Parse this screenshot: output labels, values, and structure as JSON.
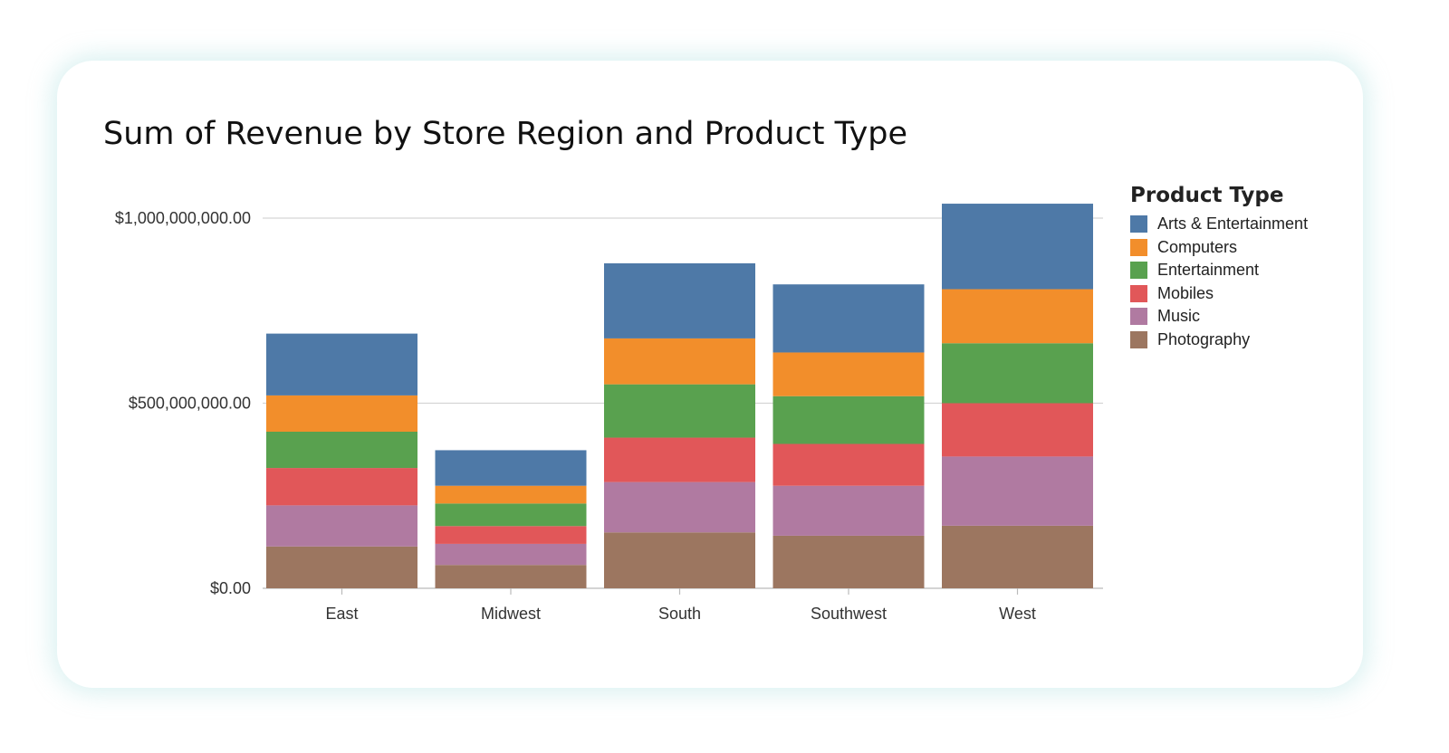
{
  "chart_data": {
    "type": "bar",
    "stacked": true,
    "title": "Sum of Revenue by Store Region and Product Type",
    "xlabel": "",
    "ylabel": "",
    "categories": [
      "East",
      "Midwest",
      "South",
      "Southwest",
      "West"
    ],
    "ylim": [
      0,
      1000000000
    ],
    "yticks": [
      {
        "value": 0,
        "label": "$0.00"
      },
      {
        "value": 500000000,
        "label": "$500,000,000.00"
      },
      {
        "value": 1000000000,
        "label": "$1,000,000,000.00"
      }
    ],
    "grid": true,
    "legend": {
      "title": "Product Type",
      "position": "right"
    },
    "series": [
      {
        "name": "Photography",
        "color": "#9c7660",
        "values": [
          113000000,
          63000000,
          151000000,
          142000000,
          169000000
        ]
      },
      {
        "name": "Music",
        "color": "#b07aa1",
        "values": [
          111000000,
          57000000,
          136000000,
          135000000,
          187000000
        ]
      },
      {
        "name": "Mobiles",
        "color": "#e15759",
        "values": [
          101000000,
          48000000,
          120000000,
          113000000,
          144000000
        ]
      },
      {
        "name": "Entertainment",
        "color": "#59a14f",
        "values": [
          98000000,
          61000000,
          144000000,
          129000000,
          162000000
        ]
      },
      {
        "name": "Computers",
        "color": "#f28e2b",
        "values": [
          98000000,
          48000000,
          124000000,
          118000000,
          146000000
        ]
      },
      {
        "name": "Arts & Entertainment",
        "color": "#4e79a7",
        "values": [
          167000000,
          96000000,
          203000000,
          184000000,
          231000000
        ]
      }
    ]
  }
}
